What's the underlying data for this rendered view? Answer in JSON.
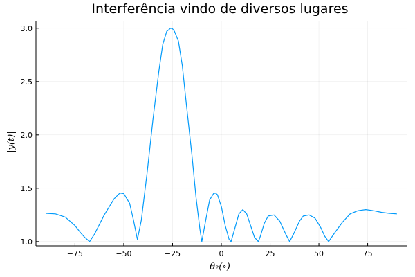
{
  "chart_data": {
    "type": "line",
    "title": "Interferência vindo de diversos lugares",
    "xlabel": "θ₂(∘)",
    "ylabel": "|y(t)|",
    "xlim": [
      -95,
      95
    ],
    "ylim": [
      0.96,
      3.07
    ],
    "xticks": [
      -75,
      -50,
      -25,
      0,
      25,
      50,
      75
    ],
    "xtick_labels": [
      "−75",
      "−50",
      "−25",
      "0",
      "25",
      "50",
      "75"
    ],
    "yticks": [
      1.0,
      1.5,
      2.0,
      2.5,
      3.0
    ],
    "ytick_labels": [
      "1.0",
      "1.5",
      "2.0",
      "2.5",
      "3.0"
    ],
    "grid": true,
    "legend": "none",
    "series": [
      {
        "color": "#009AFA",
        "x": [
          -90,
          -85,
          -80,
          -75,
          -72,
          -70,
          -67.5,
          -65,
          -60,
          -55,
          -52,
          -50,
          -47,
          -45,
          -43,
          -41,
          -38,
          -35,
          -32,
          -30,
          -28,
          -26,
          -25,
          -24,
          -22,
          -20,
          -18,
          -15,
          -13,
          -11,
          -10,
          -8,
          -6,
          -4,
          -3,
          -2,
          0,
          2,
          4,
          5,
          7,
          9,
          11,
          13,
          15,
          17,
          19,
          20,
          22,
          24,
          27,
          30,
          33,
          35,
          37,
          40,
          42,
          45,
          48,
          51,
          53,
          55,
          58,
          62,
          66,
          70,
          74,
          78,
          82,
          86,
          90
        ],
        "y": [
          1.265,
          1.26,
          1.23,
          1.15,
          1.08,
          1.04,
          1.0,
          1.07,
          1.25,
          1.4,
          1.455,
          1.45,
          1.36,
          1.2,
          1.02,
          1.2,
          1.65,
          2.15,
          2.6,
          2.85,
          2.97,
          3.0,
          2.995,
          2.97,
          2.88,
          2.65,
          2.3,
          1.8,
          1.42,
          1.12,
          1.0,
          1.2,
          1.39,
          1.45,
          1.455,
          1.44,
          1.33,
          1.15,
          1.02,
          1.0,
          1.13,
          1.26,
          1.3,
          1.26,
          1.15,
          1.04,
          1.0,
          1.05,
          1.17,
          1.24,
          1.25,
          1.19,
          1.07,
          1.0,
          1.07,
          1.19,
          1.24,
          1.25,
          1.22,
          1.13,
          1.05,
          1.0,
          1.08,
          1.18,
          1.26,
          1.29,
          1.3,
          1.29,
          1.275,
          1.265,
          1.26
        ]
      }
    ]
  }
}
